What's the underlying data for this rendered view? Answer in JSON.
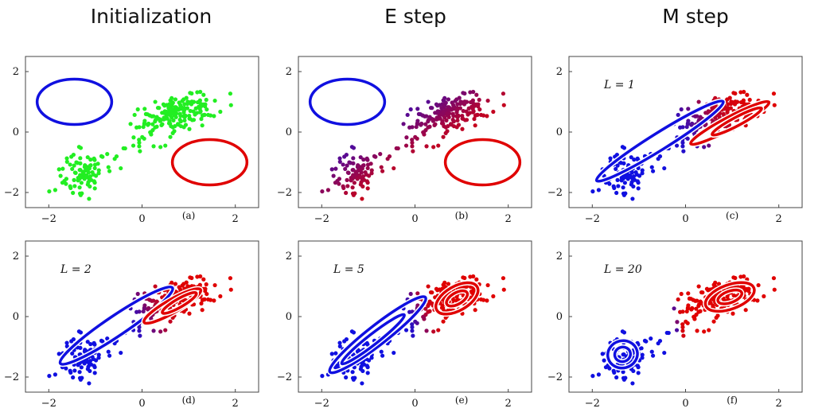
{
  "column_titles": [
    "Initialization",
    "E step",
    "M step"
  ],
  "colors": {
    "cluster_a": "#1010e0",
    "cluster_b": "#e00000",
    "unassigned": "#22ee22"
  },
  "chart_data": [
    {
      "type": "scatter",
      "panel": "(a)",
      "iteration_label": "",
      "xlim": [
        -2.5,
        2.5
      ],
      "ylim": [
        -2.5,
        2.5
      ],
      "xticks": [
        "−2",
        "0",
        "2"
      ],
      "yticks": [
        "2",
        "0",
        "−2"
      ],
      "points": "green",
      "ellipses": [
        {
          "color": "blue",
          "cx": -1.45,
          "cy": 1.0,
          "rx": 0.8,
          "ry": 0.75,
          "angle": 0
        },
        {
          "color": "red",
          "cx": 1.45,
          "cy": -1.0,
          "rx": 0.8,
          "ry": 0.75,
          "angle": 0
        }
      ]
    },
    {
      "type": "scatter",
      "panel": "(b)",
      "iteration_label": "",
      "xlim": [
        -2.5,
        2.5
      ],
      "ylim": [
        -2.5,
        2.5
      ],
      "xticks": [
        "−2",
        "0",
        "2"
      ],
      "yticks": [
        "2",
        "0",
        "−2"
      ],
      "points": "responsibility-initial",
      "ellipses": [
        {
          "color": "blue",
          "cx": -1.45,
          "cy": 1.0,
          "rx": 0.8,
          "ry": 0.75,
          "angle": 0
        },
        {
          "color": "red",
          "cx": 1.45,
          "cy": -1.0,
          "rx": 0.8,
          "ry": 0.75,
          "angle": 0
        }
      ]
    },
    {
      "type": "scatter",
      "panel": "(c)",
      "iteration_label": "L = 1",
      "xlim": [
        -2.5,
        2.5
      ],
      "ylim": [
        -2.5,
        2.5
      ],
      "xticks": [
        "−2",
        "0",
        "2"
      ],
      "yticks": [
        "2",
        "0",
        "−2"
      ],
      "points": "responsibility-1",
      "ellipses": [
        {
          "color": "blue",
          "cx": -0.55,
          "cy": -0.3,
          "rx": 1.6,
          "ry": 0.28,
          "angle": 32
        },
        {
          "color": "red",
          "cx": 0.95,
          "cy": 0.3,
          "rx": 0.95,
          "ry": 0.2,
          "angle": 28
        },
        {
          "color": "red",
          "cx": 1.1,
          "cy": 0.35,
          "rx": 0.6,
          "ry": 0.14,
          "angle": 28
        }
      ]
    },
    {
      "type": "scatter",
      "panel": "(d)",
      "iteration_label": "L = 2",
      "xlim": [
        -2.5,
        2.5
      ],
      "ylim": [
        -2.5,
        2.5
      ],
      "xticks": [
        "−2",
        "0",
        "2"
      ],
      "yticks": [
        "2",
        "0",
        "−2"
      ],
      "points": "responsibility-2",
      "ellipses": [
        {
          "color": "blue",
          "cx": -0.55,
          "cy": -0.3,
          "rx": 1.45,
          "ry": 0.33,
          "angle": 34
        },
        {
          "color": "red",
          "cx": 0.65,
          "cy": 0.35,
          "rx": 0.7,
          "ry": 0.22,
          "angle": 30
        },
        {
          "color": "red",
          "cx": 0.8,
          "cy": 0.45,
          "rx": 0.42,
          "ry": 0.14,
          "angle": 30
        }
      ]
    },
    {
      "type": "scatter",
      "panel": "(e)",
      "iteration_label": "L = 5",
      "xlim": [
        -2.5,
        2.5
      ],
      "ylim": [
        -2.5,
        2.5
      ],
      "xticks": [
        "−2",
        "0",
        "2"
      ],
      "yticks": [
        "2",
        "0",
        "−2"
      ],
      "points": "responsibility-5",
      "ellipses": [
        {
          "color": "blue",
          "cx": -0.8,
          "cy": -0.6,
          "rx": 1.3,
          "ry": 0.32,
          "angle": 38
        },
        {
          "color": "blue",
          "cx": -0.9,
          "cy": -0.75,
          "rx": 0.85,
          "ry": 0.17,
          "angle": 38
        },
        {
          "color": "red",
          "cx": 0.9,
          "cy": 0.6,
          "rx": 0.5,
          "ry": 0.4,
          "angle": 30
        },
        {
          "color": "red",
          "cx": 0.9,
          "cy": 0.6,
          "rx": 0.25,
          "ry": 0.19,
          "angle": 30
        }
      ]
    },
    {
      "type": "scatter",
      "panel": "(f)",
      "iteration_label": "L = 20",
      "xlim": [
        -2.5,
        2.5
      ],
      "ylim": [
        -2.5,
        2.5
      ],
      "xticks": [
        "−2",
        "0",
        "2"
      ],
      "yticks": [
        "2",
        "0",
        "−2"
      ],
      "points": "responsibility-20",
      "ellipses": [
        {
          "color": "blue",
          "cx": -1.35,
          "cy": -1.25,
          "rx": 0.32,
          "ry": 0.45,
          "angle": 15
        },
        {
          "color": "blue",
          "cx": -1.35,
          "cy": -1.25,
          "rx": 0.17,
          "ry": 0.24,
          "angle": 15
        },
        {
          "color": "red",
          "cx": 0.95,
          "cy": 0.65,
          "rx": 0.55,
          "ry": 0.4,
          "angle": 20
        },
        {
          "color": "red",
          "cx": 0.95,
          "cy": 0.65,
          "rx": 0.27,
          "ry": 0.19,
          "angle": 20
        }
      ]
    }
  ]
}
